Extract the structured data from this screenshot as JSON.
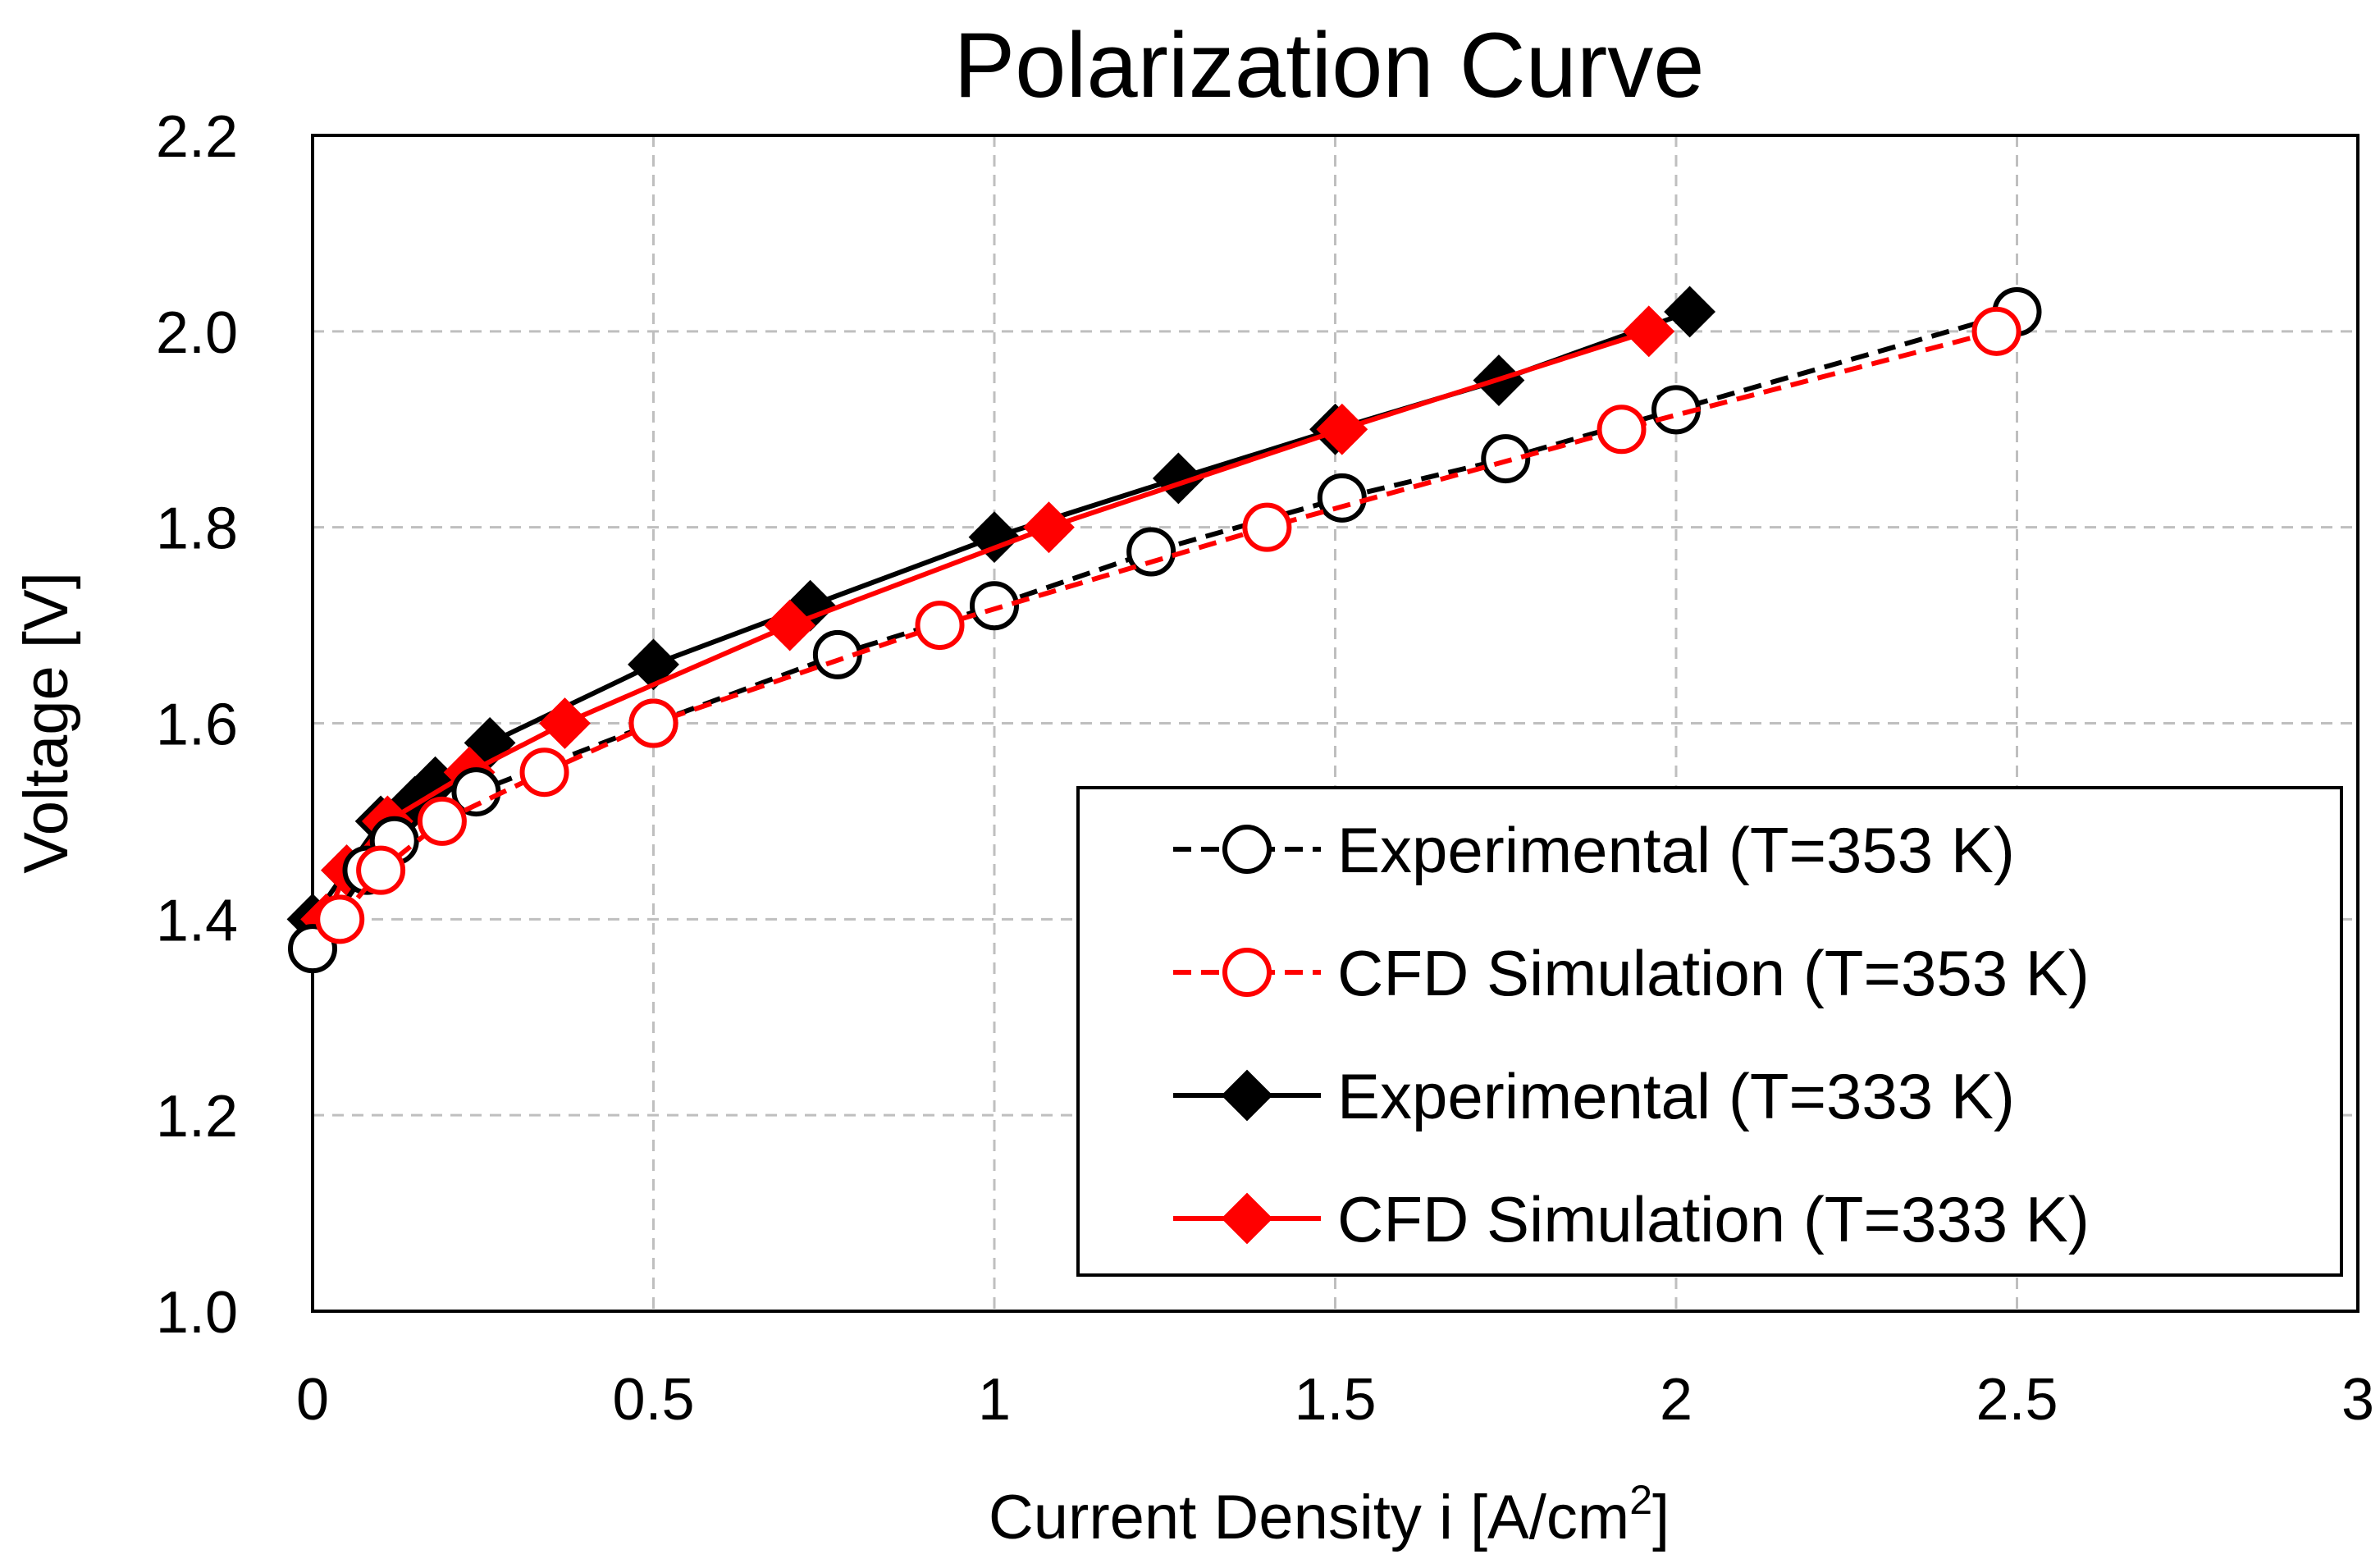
{
  "chart_data": {
    "type": "line",
    "title": "Polarization Curve",
    "xlabel": "Current Density i [A/cm",
    "xlabel_superscript": "2",
    "xlabel_suffix": "]",
    "ylabel": "Voltage [V]",
    "xlim": [
      0,
      3
    ],
    "ylim": [
      1.0,
      2.2
    ],
    "xticks": [
      0,
      0.5,
      1,
      1.5,
      2,
      2.5,
      3
    ],
    "xtick_labels": [
      "0",
      "0.5",
      "1",
      "1.5",
      "2",
      "2.5",
      "3"
    ],
    "yticks": [
      1.0,
      1.2,
      1.4,
      1.6,
      1.8,
      2.0,
      2.2
    ],
    "ytick_labels": [
      "1.0",
      "1.2",
      "1.4",
      "1.6",
      "1.8",
      "2.0",
      "2.2"
    ],
    "grid": true,
    "legend_position": "bottom-right",
    "series": [
      {
        "name": "Experimental (T=353 K)",
        "color": "#000000",
        "line": "dashed",
        "marker": "open-circle",
        "x": [
          0.0,
          0.08,
          0.12,
          0.24,
          0.5,
          0.77,
          1.0,
          1.23,
          1.51,
          1.75,
          2.0,
          2.5
        ],
        "y": [
          1.37,
          1.45,
          1.48,
          1.53,
          1.6,
          1.67,
          1.72,
          1.775,
          1.83,
          1.87,
          1.92,
          2.02
        ]
      },
      {
        "name": "CFD Simulation (T=353 K)",
        "color": "#ff0000",
        "line": "dashed",
        "marker": "open-circle",
        "x": [
          0.04,
          0.1,
          0.19,
          0.34,
          0.5,
          0.92,
          1.4,
          1.92,
          2.47
        ],
        "y": [
          1.4,
          1.45,
          1.5,
          1.55,
          1.6,
          1.7,
          1.8,
          1.9,
          2.0
        ]
      },
      {
        "name": "Experimental (T=333 K)",
        "color": "#000000",
        "line": "solid",
        "marker": "filled-diamond",
        "x": [
          0.0,
          0.05,
          0.1,
          0.15,
          0.18,
          0.26,
          0.5,
          0.73,
          1.0,
          1.27,
          1.5,
          1.74,
          2.02
        ],
        "y": [
          1.4,
          1.45,
          1.5,
          1.52,
          1.54,
          1.58,
          1.66,
          1.72,
          1.79,
          1.85,
          1.9,
          1.95,
          2.02
        ]
      },
      {
        "name": "CFD Simulation (T=333 K)",
        "color": "#ff0000",
        "line": "solid",
        "marker": "filled-diamond",
        "x": [
          0.02,
          0.05,
          0.11,
          0.23,
          0.37,
          0.7,
          1.08,
          1.51,
          1.96
        ],
        "y": [
          1.4,
          1.45,
          1.5,
          1.55,
          1.6,
          1.7,
          1.8,
          1.9,
          2.0
        ]
      }
    ]
  }
}
